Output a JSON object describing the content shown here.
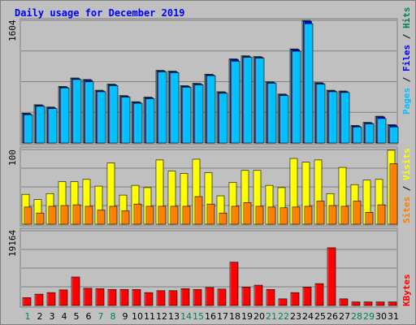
{
  "title": "Daily usage for December 2019",
  "colors": {
    "background": "#c0c0c0",
    "panel": "#c0c0c0",
    "hits": "#00805c",
    "files": "#0000ff",
    "pages": "#00c0ff",
    "visits": "#ffff00",
    "sites": "#ff8000",
    "kbytes": "#ff0000",
    "title": "#0000ff",
    "weekend_day": "#00805c",
    "weekday": "#0000ff"
  },
  "panels": {
    "top": {
      "max_label": "1604",
      "legend": [
        {
          "text": "Pages",
          "color": "#00c0ff"
        },
        {
          "text": "Files",
          "color": "#0000ff"
        },
        {
          "text": "Hits",
          "color": "#00805c"
        }
      ]
    },
    "middle": {
      "max_label": "100",
      "legend": [
        {
          "text": "Sites",
          "color": "#ff8000"
        },
        {
          "text": "Visits",
          "color": "#ffff00"
        }
      ]
    },
    "bottom": {
      "max_label": "19164",
      "legend": [
        {
          "text": "KBytes",
          "color": "#ff0000"
        }
      ]
    }
  },
  "chart_data": {
    "type": "bar",
    "title": "Daily usage for December 2019",
    "categories": [
      "1",
      "2",
      "3",
      "4",
      "5",
      "6",
      "7",
      "8",
      "9",
      "10",
      "11",
      "12",
      "13",
      "14",
      "15",
      "16",
      "17",
      "18",
      "19",
      "20",
      "21",
      "22",
      "23",
      "24",
      "25",
      "26",
      "27",
      "28",
      "29",
      "30",
      "31"
    ],
    "weekend_days": [
      "1",
      "7",
      "8",
      "14",
      "15",
      "21",
      "22",
      "28",
      "29"
    ],
    "grid": true,
    "panels": [
      {
        "name": "top",
        "ylim": [
          0,
          1604
        ],
        "series": [
          {
            "name": "Hits",
            "values": [
              390,
              500,
              470,
              740,
              850,
              830,
              690,
              770,
              620,
              540,
              600,
              950,
              940,
              750,
              780,
              900,
              670,
              1100,
              1140,
              1130,
              800,
              640,
              1230,
              1604,
              790,
              690,
              680,
              230,
              270,
              350,
              240
            ]
          },
          {
            "name": "Files",
            "values": [
              380,
              490,
              460,
              730,
              840,
              820,
              680,
              760,
              610,
              530,
              590,
              940,
              930,
              740,
              770,
              890,
              660,
              1090,
              1130,
              1120,
              790,
              630,
              1220,
              1590,
              780,
              680,
              670,
              220,
              260,
              340,
              230
            ]
          },
          {
            "name": "Pages",
            "values": [
              370,
              480,
              450,
              720,
              830,
              800,
              670,
              750,
              600,
              520,
              580,
              930,
              920,
              730,
              760,
              880,
              650,
              1070,
              1120,
              1110,
              780,
              620,
              1200,
              1560,
              770,
              670,
              660,
              210,
              250,
              320,
              210
            ]
          }
        ]
      },
      {
        "name": "middle",
        "ylim": [
          0,
          100
        ],
        "series": [
          {
            "name": "Visits",
            "values": [
              40,
              33,
              41,
              57,
              57,
              60,
              51,
              82,
              39,
              52,
              49,
              86,
              71,
              68,
              87,
              69,
              38,
              56,
              72,
              72,
              52,
              49,
              88,
              83,
              86,
              41,
              76,
              53,
              59,
              60,
              99
            ]
          },
          {
            "name": "Sites",
            "values": [
              23,
              15,
              24,
              25,
              26,
              24,
              19,
              24,
              18,
              27,
              24,
              24,
              24,
              24,
              37,
              27,
              15,
              24,
              29,
              24,
              23,
              22,
              23,
              24,
              31,
              25,
              24,
              31,
              16,
              26,
              81
            ]
          }
        ]
      },
      {
        "name": "bottom",
        "ylim": [
          0,
          19164
        ],
        "series": [
          {
            "name": "KBytes",
            "values": [
              2000,
              2900,
              3300,
              4000,
              7300,
              4400,
              4300,
              4100,
              4100,
              4100,
              3300,
              3800,
              3800,
              4300,
              4100,
              4600,
              4200,
              11100,
              4700,
              5200,
              4100,
              1700,
              3300,
              4700,
              5600,
              14800,
              1700,
              900,
              900,
              900,
              900
            ]
          }
        ]
      }
    ]
  }
}
